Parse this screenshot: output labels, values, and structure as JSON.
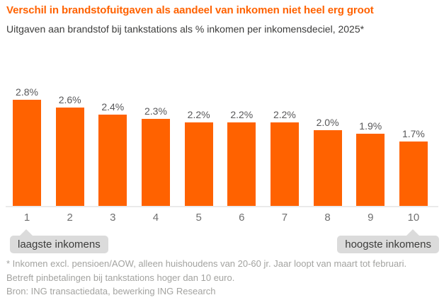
{
  "header": {
    "title": "Verschil in brandstofuitgaven als aandeel van inkomen niet heel erg groot",
    "subtitle": "Uitgaven aan brandstof bij tankstations als % inkomen per inkomensdeciel, 2025*"
  },
  "chart_data": {
    "type": "bar",
    "categories": [
      "1",
      "2",
      "3",
      "4",
      "5",
      "6",
      "7",
      "8",
      "9",
      "10"
    ],
    "values": [
      2.8,
      2.6,
      2.4,
      2.3,
      2.2,
      2.2,
      2.2,
      2.0,
      1.9,
      1.7
    ],
    "data_labels": [
      "2.8%",
      "2.6%",
      "2.4%",
      "2.3%",
      "2.2%",
      "2.2%",
      "2.2%",
      "2.0%",
      "1.9%",
      "1.7%"
    ],
    "title": "Verschil in brandstofuitgaven als aandeel van inkomen niet heel erg groot",
    "subtitle": "Uitgaven aan brandstof bij tankstations als % inkomen per inkomensdeciel, 2025*",
    "xlabel": "",
    "ylabel": "",
    "ylim": [
      0,
      3.2
    ],
    "grid": false,
    "legend": false,
    "bar_color": "#FF6200",
    "annotations": [
      {
        "text": "laagste inkomens",
        "target_category": "1",
        "position": "left"
      },
      {
        "text": "hoogste inkomens",
        "target_category": "10",
        "position": "right"
      }
    ]
  },
  "footer": {
    "note_lines": [
      "* Inkomen excl. pensioen/AOW, alleen huishoudens van 20-60 jr. Jaar loopt van maart tot februari.",
      "Betreft pinbetalingen bij tankstations hoger dan 10 euro."
    ],
    "source": "Bron: ING transactiedata, bewerking ING Research"
  },
  "colors": {
    "accent_orange": "#FF6200",
    "title_text": "#FF6200",
    "subtitle_text": "#3C3C3B",
    "value_label": "#58585A",
    "tick_label": "#6F6F6F",
    "callout_bg": "#DBDBDB",
    "callout_text": "#3C3C3B",
    "footnote_text": "#A3A3A0",
    "axis_line": "#EAEAEA",
    "background": "#FFFFFF"
  }
}
